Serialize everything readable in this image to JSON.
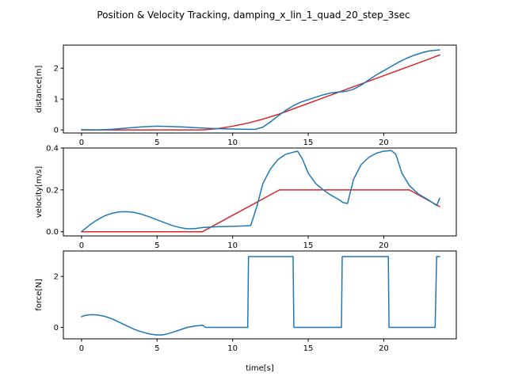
{
  "figure": {
    "title": "Position & Velocity Tracking, damping_x_lin_1_quad_20_step_3sec"
  },
  "colors": {
    "reference": "#d62728",
    "actual": "#1f77b4",
    "frame": "#000000"
  },
  "chart_data": [
    {
      "type": "line",
      "ylabel": "distance[m]",
      "xlim": [
        -1.2,
        24.8
      ],
      "ylim": [
        -0.1,
        2.75
      ],
      "xticks": [
        0,
        5,
        10,
        15,
        20
      ],
      "yticks": [
        0,
        1,
        2
      ],
      "grid": false,
      "series": [
        {
          "key": "reference",
          "x": [
            0,
            2,
            4,
            6,
            8,
            9,
            10,
            11,
            12,
            13,
            14,
            15,
            16,
            17,
            18,
            19,
            20,
            21,
            22,
            23,
            23.7
          ],
          "y": [
            0,
            0,
            0,
            0,
            0,
            0.04,
            0.12,
            0.22,
            0.35,
            0.5,
            0.68,
            0.86,
            1.04,
            1.22,
            1.4,
            1.58,
            1.76,
            1.94,
            2.12,
            2.3,
            2.43
          ]
        },
        {
          "key": "actual",
          "x": [
            0,
            1,
            2,
            3,
            4,
            5,
            6,
            7,
            8,
            9,
            10,
            11,
            11.5,
            12,
            12.5,
            13,
            13.5,
            14,
            14.5,
            15,
            15.5,
            16,
            16.5,
            17,
            17.5,
            18,
            18.5,
            19,
            19.5,
            20,
            20.5,
            21,
            21.5,
            22,
            22.5,
            23,
            23.7
          ],
          "y": [
            0.01,
            0,
            0.02,
            0.06,
            0.1,
            0.12,
            0.11,
            0.09,
            0.06,
            0.04,
            0.03,
            0.02,
            0.02,
            0.09,
            0.26,
            0.45,
            0.63,
            0.78,
            0.9,
            0.98,
            1.06,
            1.14,
            1.2,
            1.23,
            1.25,
            1.32,
            1.45,
            1.62,
            1.78,
            1.92,
            2.06,
            2.2,
            2.32,
            2.42,
            2.5,
            2.56,
            2.6
          ]
        }
      ]
    },
    {
      "type": "line",
      "ylabel": "velocity[m/s]",
      "xlim": [
        -1.2,
        24.8
      ],
      "ylim": [
        -0.02,
        0.4
      ],
      "xticks": [
        0,
        5,
        10,
        15,
        20
      ],
      "yticks": [
        0.0,
        0.2,
        0.4
      ],
      "ytick_labels": [
        "0.0",
        "0.2",
        "0.4"
      ],
      "grid": false,
      "series": [
        {
          "key": "reference",
          "x": [
            0,
            8,
            13.1,
            21.7,
            23.7
          ],
          "y": [
            0,
            0,
            0.2,
            0.2,
            0.12
          ]
        },
        {
          "key": "actual",
          "x": [
            0,
            0.5,
            1,
            1.5,
            2,
            2.5,
            3,
            3.5,
            4,
            4.5,
            5,
            5.5,
            6,
            6.5,
            7,
            7.5,
            8,
            9,
            10,
            11,
            11.2,
            11.6,
            12,
            12.5,
            13,
            13.5,
            14,
            14.3,
            14.6,
            15,
            15.5,
            16,
            16.5,
            17,
            17.3,
            17.6,
            18,
            18.5,
            19,
            19.5,
            20,
            20.5,
            20.8,
            21.2,
            21.7,
            22.3,
            23,
            23.5,
            23.7
          ],
          "y": [
            0,
            0.03,
            0.055,
            0.075,
            0.088,
            0.095,
            0.096,
            0.092,
            0.083,
            0.071,
            0.057,
            0.043,
            0.03,
            0.02,
            0.014,
            0.015,
            0.02,
            0.024,
            0.026,
            0.028,
            0.03,
            0.12,
            0.23,
            0.3,
            0.345,
            0.37,
            0.38,
            0.385,
            0.35,
            0.28,
            0.23,
            0.2,
            0.175,
            0.155,
            0.14,
            0.135,
            0.25,
            0.32,
            0.355,
            0.375,
            0.385,
            0.388,
            0.37,
            0.28,
            0.22,
            0.18,
            0.15,
            0.125,
            0.16
          ]
        }
      ]
    },
    {
      "type": "line",
      "xlabel": "time[s]",
      "ylabel": "force[N]",
      "xlim": [
        -1.2,
        24.8
      ],
      "ylim": [
        -0.45,
        3.0
      ],
      "xticks": [
        0,
        5,
        10,
        15,
        20
      ],
      "yticks": [
        0,
        2
      ],
      "grid": false,
      "series": [
        {
          "key": "actual",
          "x": [
            0,
            0.3,
            0.7,
            1,
            1.5,
            2,
            2.5,
            3,
            3.5,
            4,
            4.5,
            5,
            5.3,
            5.6,
            6,
            6.5,
            7,
            7.5,
            7.9,
            8,
            8.1,
            8.2,
            11,
            11.05,
            14,
            14.05,
            17.2,
            17.25,
            20.3,
            20.35,
            23.4,
            23.5,
            23.7
          ],
          "y": [
            0.42,
            0.48,
            0.5,
            0.49,
            0.44,
            0.34,
            0.2,
            0.06,
            -0.08,
            -0.18,
            -0.26,
            -0.3,
            -0.3,
            -0.27,
            -0.2,
            -0.1,
            0.0,
            0.05,
            0.08,
            0.09,
            0.05,
            0.0,
            0.0,
            2.78,
            2.78,
            0.0,
            0.0,
            2.78,
            2.78,
            0.0,
            0.0,
            2.78,
            2.78
          ]
        }
      ]
    }
  ]
}
